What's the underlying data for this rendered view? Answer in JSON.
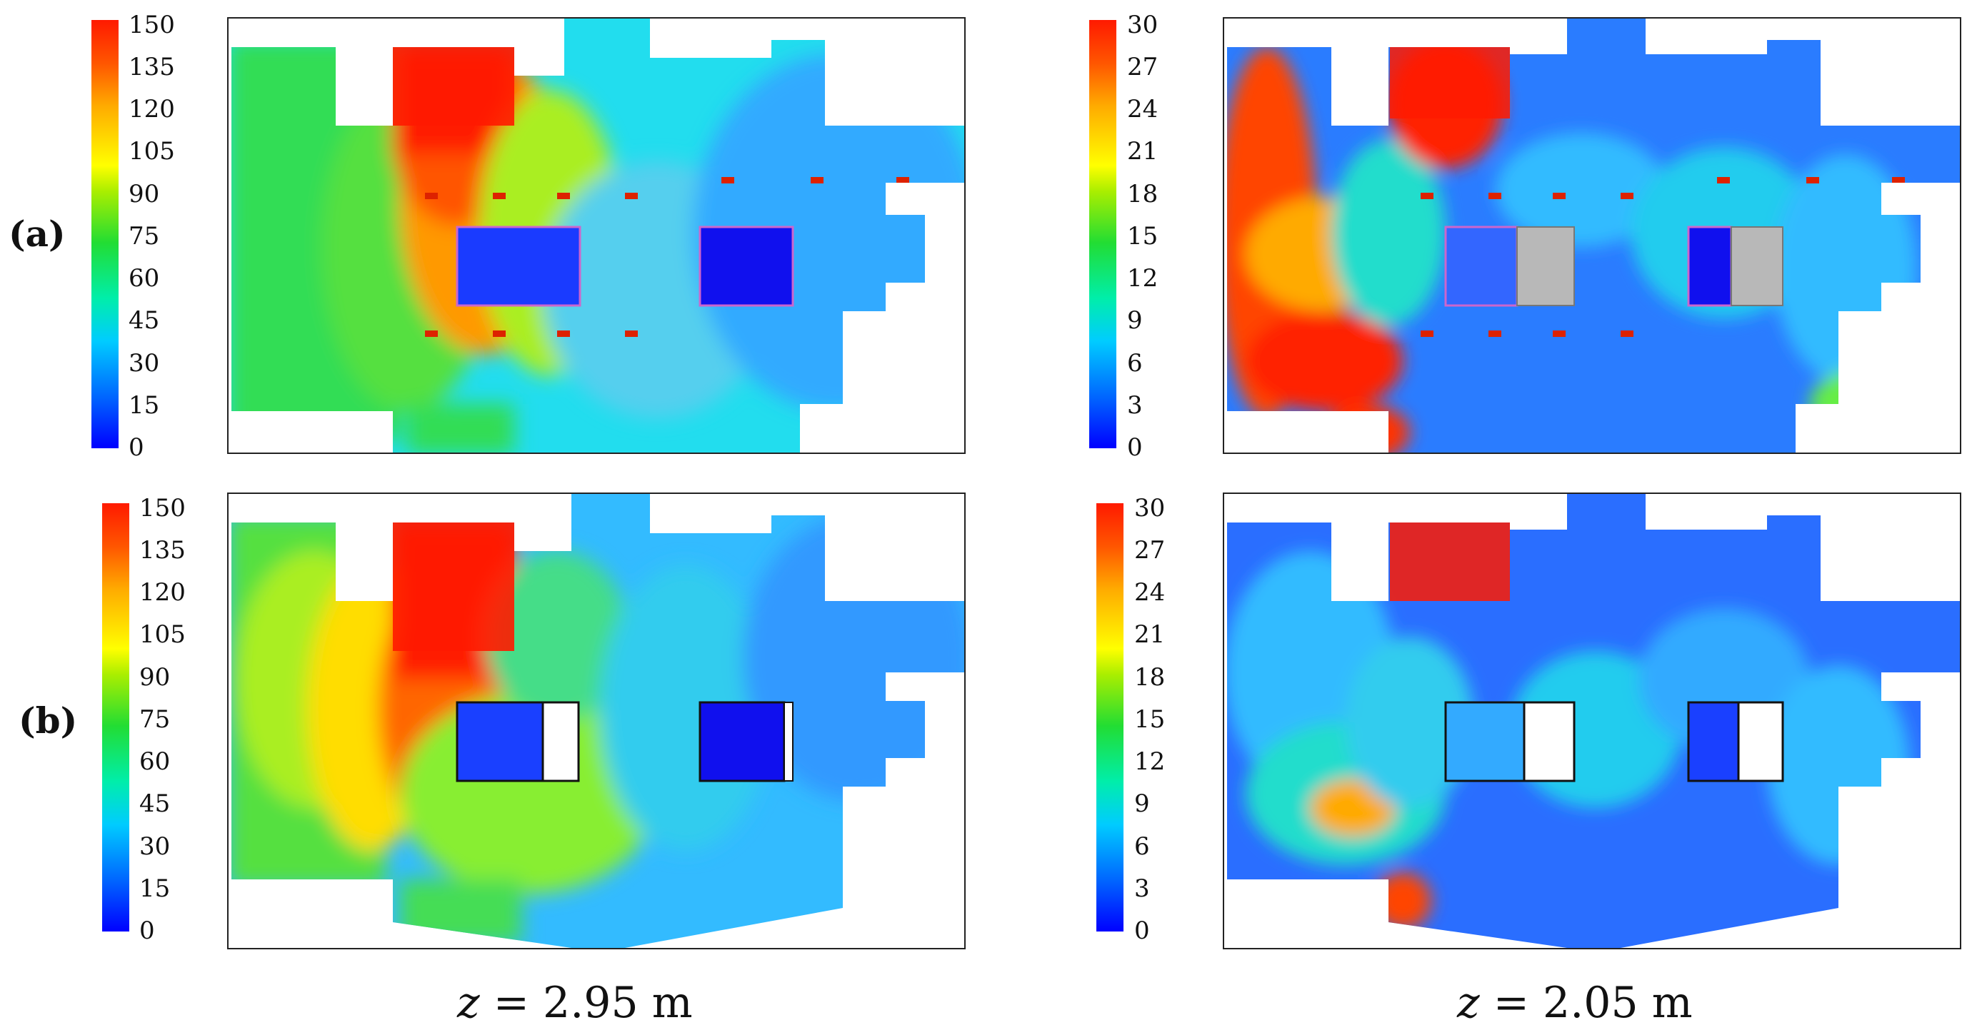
{
  "row_labels": [
    "(a)",
    "(b)"
  ],
  "colorbars": {
    "temperature_ticks": [
      "150",
      "135",
      "120",
      "105",
      "90",
      "75",
      "60",
      "45",
      "30",
      "15",
      "0"
    ],
    "velocity_ticks": [
      "30",
      "27",
      "24",
      "21",
      "18",
      "15",
      "12",
      "9",
      "6",
      "3",
      "0"
    ]
  },
  "column_labels": {
    "left": {
      "var": "z",
      "eq": " = 2.95 m"
    },
    "right": {
      "var": "z",
      "eq": " = 2.05 m"
    }
  },
  "colors": {
    "hot": "#ff1a00",
    "warm": "#ff8800",
    "yellow": "#ffee00",
    "green": "#33dd44",
    "cyan": "#22ddee",
    "light-blue": "#33aaff",
    "blue": "#2255ff",
    "deep-blue": "#1010ee",
    "obstacle-grey": "#b8b8b8",
    "marker-red": "#dd2200"
  }
}
